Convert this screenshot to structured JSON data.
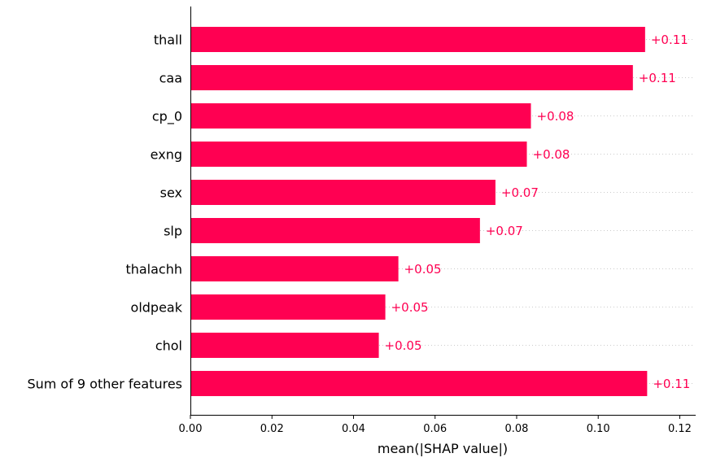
{
  "chart_data": {
    "type": "bar",
    "orientation": "horizontal",
    "categories": [
      "thall",
      "caa",
      "cp_0",
      "exng",
      "sex",
      "slp",
      "thalachh",
      "oldpeak",
      "chol",
      "Sum of 9 other features"
    ],
    "values": [
      0.1115,
      0.1085,
      0.0835,
      0.0825,
      0.0748,
      0.071,
      0.051,
      0.0478,
      0.0462,
      0.112
    ],
    "value_labels": [
      "+0.11",
      "+0.11",
      "+0.08",
      "+0.08",
      "+0.07",
      "+0.07",
      "+0.05",
      "+0.05",
      "+0.05",
      "+0.11"
    ],
    "xlabel": "mean(|SHAP value|)",
    "xticks": [
      "0.00",
      "0.02",
      "0.04",
      "0.06",
      "0.08",
      "0.10",
      "0.12"
    ],
    "xtick_values": [
      0,
      0.02,
      0.04,
      0.06,
      0.08,
      0.1,
      0.12
    ],
    "xlim": [
      0,
      0.1235
    ],
    "bar_color": "#ff0052",
    "label_color": "#ff0052",
    "grid": "dotted horizontal guides per bar"
  }
}
